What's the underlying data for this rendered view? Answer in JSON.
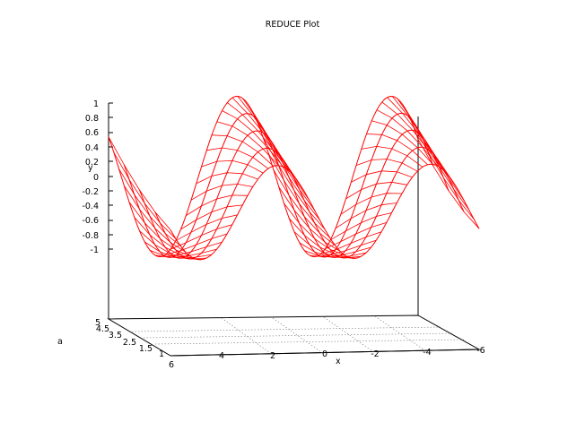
{
  "chart_data": {
    "type": "surface3d",
    "title": "REDUCE Plot",
    "xlabel": "x",
    "ylabel": "y",
    "alabel": "a",
    "xlim": [
      -6,
      6
    ],
    "ylim": [
      -1,
      1
    ],
    "alim": [
      1,
      5
    ],
    "x_ticks": [
      "6",
      "4",
      "2",
      "0",
      "-2",
      "-4",
      "-6"
    ],
    "y_ticks": [
      "1",
      "0.8",
      "0.6",
      "0.4",
      "0.2",
      "0",
      "-0.2",
      "-0.4",
      "-0.6",
      "-0.8",
      "-1"
    ],
    "a_ticks": [
      "5",
      "4.5",
      "3.5",
      "2.5",
      "1.5",
      "1"
    ],
    "surface_color": "#ff0000",
    "grid": true,
    "series": [
      {
        "x": [
          6,
          4.5,
          3,
          1.5,
          0,
          -1.5,
          -3,
          -4.5,
          -6
        ],
        "y_front": [
          0,
          -0.8,
          0.95,
          -0.1,
          -0.95,
          0.35,
          0.95,
          -0.6,
          0.4
        ]
      }
    ]
  }
}
